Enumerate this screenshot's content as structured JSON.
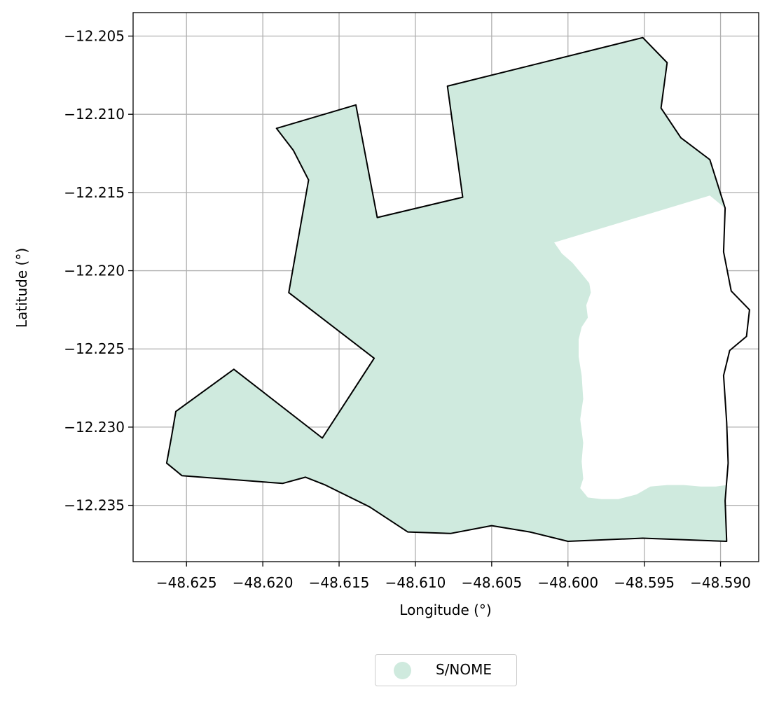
{
  "chart_data": {
    "type": "map",
    "xlabel": "Longitude (°)",
    "ylabel": "Latitude (°)",
    "xlim": [
      -48.6285,
      -48.5875
    ],
    "ylim": [
      -12.2386,
      -12.2035
    ],
    "grid": true,
    "xticks": [
      -48.625,
      -48.62,
      -48.615,
      -48.61,
      -48.605,
      -48.6,
      -48.595,
      -48.59
    ],
    "xtick_labels": [
      "−48.625",
      "−48.620",
      "−48.615",
      "−48.610",
      "−48.605",
      "−48.600",
      "−48.595",
      "−48.590"
    ],
    "yticks": [
      -12.205,
      -12.21,
      -12.215,
      -12.22,
      -12.225,
      -12.23,
      -12.235
    ],
    "ytick_labels": [
      "−12.205",
      "−12.210",
      "−12.215",
      "−12.220",
      "−12.225",
      "−12.230",
      "−12.235"
    ],
    "fill_color": "#cfeade",
    "outline_color": "#000000",
    "grid_color": "#b0b0b0",
    "outline": [
      [
        -48.5951,
        -12.2051
      ],
      [
        -48.5935,
        -12.2067
      ],
      [
        -48.5939,
        -12.2096
      ],
      [
        -48.5926,
        -12.2115
      ],
      [
        -48.5907,
        -12.2129
      ],
      [
        -48.5897,
        -12.216
      ],
      [
        -48.5898,
        -12.2188
      ],
      [
        -48.5893,
        -12.2213
      ],
      [
        -48.5881,
        -12.2225
      ],
      [
        -48.5883,
        -12.2242
      ],
      [
        -48.5894,
        -12.2251
      ],
      [
        -48.5898,
        -12.2267
      ],
      [
        -48.5896,
        -12.2297
      ],
      [
        -48.5895,
        -12.2323
      ],
      [
        -48.5897,
        -12.2347
      ],
      [
        -48.5896,
        -12.2373
      ],
      [
        -48.5951,
        -12.2371
      ],
      [
        -48.6,
        -12.2373
      ],
      [
        -48.6025,
        -12.2367
      ],
      [
        -48.605,
        -12.2363
      ],
      [
        -48.6077,
        -12.2368
      ],
      [
        -48.6105,
        -12.2367
      ],
      [
        -48.613,
        -12.2351
      ],
      [
        -48.6159,
        -12.2337
      ],
      [
        -48.6172,
        -12.2332
      ],
      [
        -48.6187,
        -12.2336
      ],
      [
        -48.6253,
        -12.2331
      ],
      [
        -48.6263,
        -12.2323
      ],
      [
        -48.626,
        -12.2307
      ],
      [
        -48.6257,
        -12.229
      ],
      [
        -48.6219,
        -12.2263
      ],
      [
        -48.6161,
        -12.2307
      ],
      [
        -48.6127,
        -12.2256
      ],
      [
        -48.6183,
        -12.2214
      ],
      [
        -48.617,
        -12.2142
      ],
      [
        -48.618,
        -12.2123
      ],
      [
        -48.6191,
        -12.2109
      ],
      [
        -48.6139,
        -12.2094
      ],
      [
        -48.6125,
        -12.2166
      ],
      [
        -48.6069,
        -12.2153
      ],
      [
        -48.6079,
        -12.2082
      ],
      [
        -48.5951,
        -12.2051
      ]
    ],
    "white_area": [
      [
        -48.5907,
        -12.2152
      ],
      [
        -48.6009,
        -12.2182
      ],
      [
        -48.6004,
        -12.2189
      ],
      [
        -48.5997,
        -12.2195
      ],
      [
        -48.5991,
        -12.2202
      ],
      [
        -48.5986,
        -12.2208
      ],
      [
        -48.5985,
        -12.2214
      ],
      [
        -48.5988,
        -12.2222
      ],
      [
        -48.5987,
        -12.223
      ],
      [
        -48.5991,
        -12.2236
      ],
      [
        -48.5993,
        -12.2244
      ],
      [
        -48.5993,
        -12.2255
      ],
      [
        -48.5991,
        -12.2267
      ],
      [
        -48.599,
        -12.2282
      ],
      [
        -48.5992,
        -12.2295
      ],
      [
        -48.599,
        -12.231
      ],
      [
        -48.5991,
        -12.2322
      ],
      [
        -48.599,
        -12.2333
      ],
      [
        -48.5992,
        -12.2339
      ],
      [
        -48.5987,
        -12.2345
      ],
      [
        -48.5978,
        -12.2346
      ],
      [
        -48.5967,
        -12.2346
      ],
      [
        -48.5955,
        -12.2343
      ],
      [
        -48.5946,
        -12.2338
      ],
      [
        -48.5935,
        -12.2337
      ],
      [
        -48.5924,
        -12.2337
      ],
      [
        -48.5913,
        -12.2338
      ],
      [
        -48.5903,
        -12.2338
      ],
      [
        -48.5896,
        -12.2337
      ],
      [
        -48.5895,
        -12.2323
      ],
      [
        -48.5896,
        -12.2297
      ],
      [
        -48.5898,
        -12.2267
      ],
      [
        -48.5894,
        -12.2251
      ],
      [
        -48.5883,
        -12.2242
      ],
      [
        -48.5881,
        -12.2225
      ],
      [
        -48.5893,
        -12.2213
      ],
      [
        -48.5898,
        -12.2188
      ],
      [
        -48.5897,
        -12.216
      ],
      [
        -48.5907,
        -12.2152
      ]
    ],
    "series": [
      {
        "name": "S/NOME",
        "color": "#cfeade"
      }
    ]
  },
  "legend": {
    "items": [
      {
        "label": "S/NOME",
        "color": "#cfeade",
        "icon": "circle-marker-icon"
      }
    ]
  }
}
